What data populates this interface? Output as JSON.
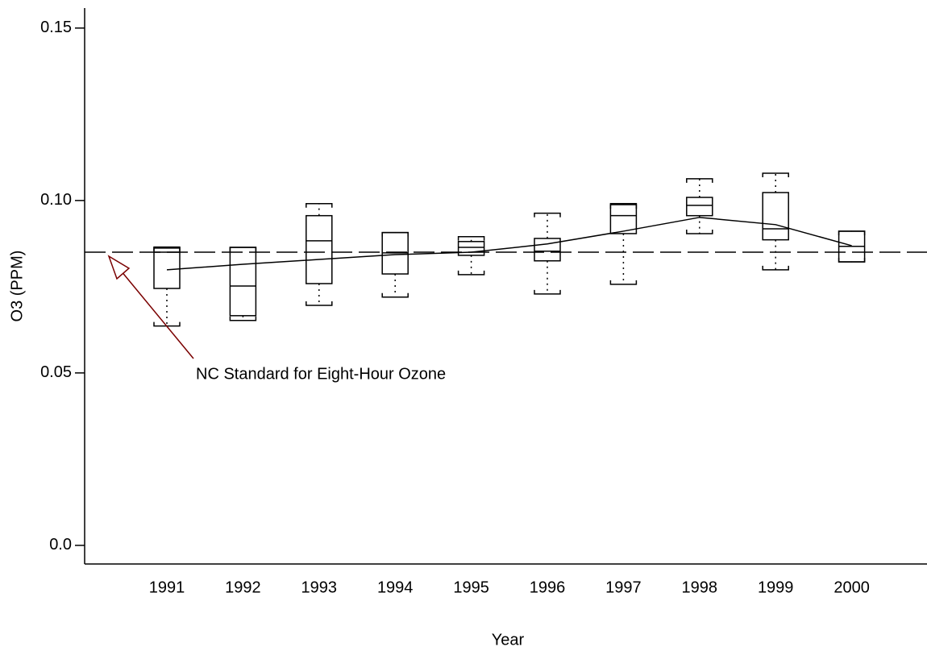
{
  "chart_data": {
    "type": "box",
    "x_label": "Year",
    "y_label": "O3 (PPM)",
    "categories": [
      "1991",
      "1992",
      "1993",
      "1994",
      "1995",
      "1996",
      "1997",
      "1998",
      "1999",
      "2000"
    ],
    "boxes": {
      "min": [
        0.0636,
        0.0652,
        0.0696,
        0.072,
        0.0785,
        0.0729,
        0.0757,
        0.0904,
        0.0799,
        0.0822
      ],
      "q1": [
        0.0745,
        0.0666,
        0.0759,
        0.0787,
        0.0841,
        0.0825,
        0.0904,
        0.0956,
        0.0886,
        0.0822
      ],
      "median": [
        0.085,
        0.0752,
        0.0883,
        0.0848,
        0.0864,
        0.0853,
        0.0956,
        0.0986,
        0.0918,
        0.0867
      ],
      "q3": [
        0.0862,
        0.0864,
        0.0956,
        0.0907,
        0.0881,
        0.089,
        0.0991,
        0.1009,
        0.1023,
        0.0911
      ],
      "max": [
        0.0865,
        0.0864,
        0.0991,
        0.0907,
        0.0895,
        0.0963,
        0.0988,
        0.1063,
        0.1079,
        0.0911
      ],
      "color": "#000000"
    },
    "mean": {
      "values": [
        0.0799,
        0.0815,
        0.0829,
        0.0843,
        0.085,
        0.0874,
        0.0911,
        0.0951,
        0.093,
        0.0869
      ],
      "color": "#000000"
    },
    "reference_line": {
      "value": 0.085,
      "color": "#000000"
    },
    "annotation": {
      "text": "NC Standard for Eight-Hour Ozone",
      "color": "#7a0000"
    },
    "ylim": [
      -0.0054,
      0.1558
    ],
    "yticks": [
      {
        "value": 0,
        "label": "0.0"
      },
      {
        "value": 0.05,
        "label": "0.05"
      },
      {
        "value": 0.1,
        "label": "0.10"
      },
      {
        "value": 0.15,
        "label": "0.15"
      }
    ]
  }
}
